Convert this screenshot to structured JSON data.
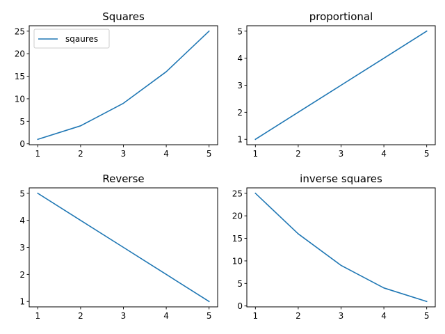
{
  "colors": {
    "line": "#1f77b4"
  },
  "chart_data": [
    {
      "type": "line",
      "title": "Squares",
      "x": [
        1,
        2,
        3,
        4,
        5
      ],
      "series": [
        {
          "name": "sqaures",
          "values": [
            1,
            4,
            9,
            16,
            25
          ]
        }
      ],
      "xlim": [
        0.8,
        5.2
      ],
      "ylim": [
        -0.2,
        26.2
      ],
      "xticks": [
        1,
        2,
        3,
        4,
        5
      ],
      "yticks": [
        0,
        5,
        10,
        15,
        20,
        25
      ],
      "grid": false,
      "legend": "upper-left"
    },
    {
      "type": "line",
      "title": "proportional",
      "x": [
        1,
        2,
        3,
        4,
        5
      ],
      "series": [
        {
          "values": [
            1,
            2,
            3,
            4,
            5
          ]
        }
      ],
      "xlim": [
        0.8,
        5.2
      ],
      "ylim": [
        0.8,
        5.2
      ],
      "xticks": [
        1,
        2,
        3,
        4,
        5
      ],
      "yticks": [
        1,
        2,
        3,
        4,
        5
      ],
      "grid": false
    },
    {
      "type": "line",
      "title": "Reverse",
      "x": [
        1,
        2,
        3,
        4,
        5
      ],
      "series": [
        {
          "values": [
            5,
            4,
            3,
            2,
            1
          ]
        }
      ],
      "xlim": [
        0.8,
        5.2
      ],
      "ylim": [
        0.8,
        5.2
      ],
      "xticks": [
        1,
        2,
        3,
        4,
        5
      ],
      "yticks": [
        1,
        2,
        3,
        4,
        5
      ],
      "grid": false
    },
    {
      "type": "line",
      "title": "inverse squares",
      "x": [
        1,
        2,
        3,
        4,
        5
      ],
      "series": [
        {
          "values": [
            25,
            16,
            9,
            4,
            1
          ]
        }
      ],
      "xlim": [
        0.8,
        5.2
      ],
      "ylim": [
        -0.2,
        26.2
      ],
      "xticks": [
        1,
        2,
        3,
        4,
        5
      ],
      "yticks": [
        0,
        5,
        10,
        15,
        20,
        25
      ],
      "grid": false
    }
  ]
}
